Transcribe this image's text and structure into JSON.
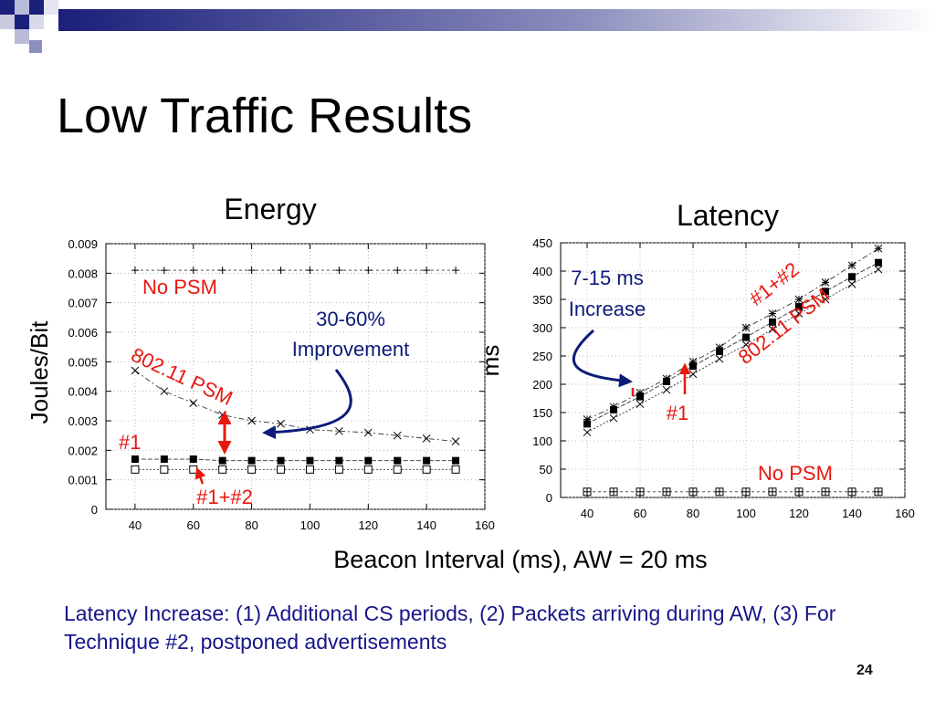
{
  "slide": {
    "title": "Low Traffic Results",
    "xlabel": "Beacon Interval (ms), AW = 20 ms",
    "footnote": "Latency Increase: (1) Additional CS periods, (2) Packets arriving during AW, (3) For Technique #2, postponed advertisements",
    "page_number": "24",
    "colors": {
      "annotation_red": "#e8180f",
      "annotation_navy": "#0d1b7a",
      "footnote": "#16168a",
      "deco_navy": "#1a1f7a"
    }
  },
  "chart_data": [
    {
      "type": "line",
      "title": "Energy",
      "xlabel": "",
      "ylabel": "Joules/Bit",
      "xlim": [
        30,
        160
      ],
      "ylim": [
        0,
        0.009
      ],
      "x_ticks": [
        "40",
        "60",
        "80",
        "100",
        "120",
        "140",
        "160"
      ],
      "y_ticks": [
        "0",
        "0.001",
        "0.002",
        "0.003",
        "0.004",
        "0.005",
        "0.006",
        "0.007",
        "0.008",
        "0.009"
      ],
      "grid": true,
      "x": [
        40,
        50,
        60,
        70,
        80,
        90,
        100,
        110,
        120,
        130,
        140,
        150
      ],
      "series": [
        {
          "name": "No PSM",
          "marker": "plus",
          "values": [
            0.0081,
            0.0081,
            0.0081,
            0.0081,
            0.0081,
            0.0081,
            0.0081,
            0.0081,
            0.0081,
            0.0081,
            0.0081,
            0.0081
          ]
        },
        {
          "name": "802.11 PSM",
          "marker": "cross",
          "values": [
            0.0047,
            0.004,
            0.0036,
            0.0032,
            0.003,
            0.0029,
            0.0027,
            0.00265,
            0.0026,
            0.0025,
            0.0024,
            0.0023
          ]
        },
        {
          "name": "#1",
          "marker": "filled-square",
          "values": [
            0.0017,
            0.0017,
            0.0017,
            0.00165,
            0.00165,
            0.00165,
            0.00165,
            0.00165,
            0.00165,
            0.00165,
            0.00165,
            0.00165
          ]
        },
        {
          "name": "#1+#2",
          "marker": "open-square",
          "values": [
            0.00135,
            0.00135,
            0.00135,
            0.00135,
            0.00135,
            0.00135,
            0.00135,
            0.00135,
            0.00135,
            0.00135,
            0.00135,
            0.00135
          ]
        }
      ],
      "annotations": {
        "no_psm": "No PSM",
        "psm": "802.11 PSM",
        "improvement_line1": "30-60%",
        "improvement_line2": "Improvement",
        "n1": "#1",
        "n12": "#1+#2"
      }
    },
    {
      "type": "line",
      "title": "Latency",
      "xlabel": "",
      "ylabel": "ms",
      "xlim": [
        30,
        160
      ],
      "ylim": [
        0,
        450
      ],
      "x_ticks": [
        "40",
        "60",
        "80",
        "100",
        "120",
        "140",
        "160"
      ],
      "y_ticks": [
        "0",
        "50",
        "100",
        "150",
        "200",
        "250",
        "300",
        "350",
        "400",
        "450"
      ],
      "grid": true,
      "x": [
        40,
        50,
        60,
        70,
        80,
        90,
        100,
        110,
        120,
        130,
        140,
        150
      ],
      "series": [
        {
          "name": "No PSM",
          "marker": "box-plus",
          "values": [
            10,
            10,
            10,
            10,
            10,
            10,
            10,
            10,
            10,
            10,
            10,
            10
          ]
        },
        {
          "name": "#1+#2",
          "marker": "star",
          "values": [
            138,
            160,
            185,
            210,
            240,
            265,
            300,
            325,
            350,
            380,
            410,
            440
          ]
        },
        {
          "name": "#1",
          "marker": "filled-square",
          "values": [
            130,
            155,
            178,
            205,
            232,
            258,
            283,
            310,
            337,
            364,
            390,
            415
          ]
        },
        {
          "name": "802.11 PSM",
          "marker": "cross",
          "values": [
            115,
            140,
            165,
            190,
            218,
            245,
            270,
            297,
            325,
            350,
            377,
            403
          ]
        }
      ],
      "annotations": {
        "increase_line1": "7-15 ms",
        "increase_line2": "Increase",
        "n12": "#1+#2",
        "psm": "802.11 PSM",
        "n1": "#1",
        "no_psm": "No PSM"
      }
    }
  ]
}
